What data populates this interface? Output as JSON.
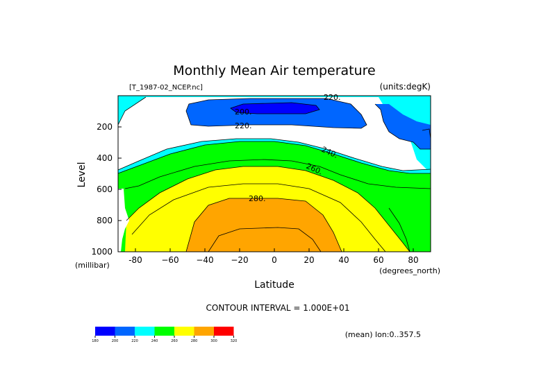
{
  "chart_data": {
    "type": "contour",
    "title": "Monthly Mean Air temperature",
    "file_label": "[T_1987-02_NCEP.nc]",
    "units_label": "(units:degK)",
    "xlabel": "Latitude",
    "x_units": "(degrees_north)",
    "ylabel": "Level",
    "y_units": "(millibar)",
    "xlim": [
      -90,
      90
    ],
    "ylim": [
      1000,
      0
    ],
    "x_ticks": [
      -80,
      -60,
      -40,
      -20,
      0,
      20,
      40,
      60,
      80
    ],
    "x_tick_labels": [
      "-80",
      "−60",
      "−40",
      "−20",
      "0",
      "20",
      "40",
      "60",
      "80"
    ],
    "y_ticks": [
      200,
      400,
      600,
      800,
      1000
    ],
    "y_tick_labels": [
      "200",
      "400",
      "600",
      "800",
      "1000"
    ],
    "contour_labels": [
      "200.",
      "220.",
      "220.",
      "240.",
      "260.",
      "280."
    ],
    "contour_interval_text": "CONTOUR INTERVAL = 1.000E+01",
    "colorbar": {
      "levels": [
        "180",
        "200",
        "220",
        "240",
        "260",
        "280",
        "300",
        "320"
      ],
      "colors": [
        "#0000ff",
        "#0066ff",
        "#00ffff",
        "#00ff00",
        "#ffff00",
        "#ffa500",
        "#ff0000"
      ]
    },
    "footnote": "(mean) lon:0..357.5"
  }
}
